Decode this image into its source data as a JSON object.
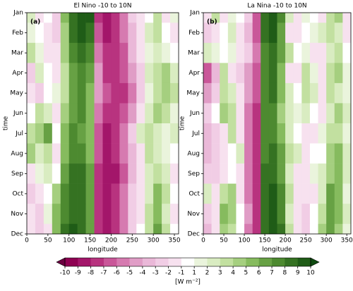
{
  "chart_data": [
    {
      "type": "heatmap",
      "title": "El Nino -10 to 10N",
      "panel_label": "(a)",
      "xlabel": "longitude",
      "ylabel": "time",
      "categories": [
        "Jan",
        "Feb",
        "Mar",
        "Apr",
        "May",
        "Jun",
        "Jul",
        "Aug",
        "Sep",
        "Oct",
        "Nov",
        "Dec"
      ],
      "x_bins": [
        0,
        20,
        40,
        60,
        80,
        100,
        120,
        140,
        160,
        180,
        200,
        220,
        240,
        260,
        280,
        300,
        320,
        340,
        360
      ],
      "xlim": [
        0,
        360
      ],
      "xticks": [
        0,
        50,
        100,
        150,
        200,
        250,
        300,
        350
      ],
      "values": [
        [
          2,
          -2,
          -1,
          -3,
          5,
          8,
          9,
          9,
          -8,
          -9,
          -8,
          -6,
          -3,
          -2,
          -1,
          3,
          -2,
          1
        ],
        [
          1,
          -1,
          -2,
          -3,
          4,
          8,
          9,
          8,
          -7,
          -9,
          -8,
          -6,
          -4,
          -2,
          2,
          3,
          -1,
          -2
        ],
        [
          3,
          1,
          -2,
          -2,
          4,
          7,
          8,
          7,
          -6,
          -8,
          -8,
          -7,
          -4,
          -2,
          1,
          2,
          1,
          -1
        ],
        [
          -3,
          2,
          -1,
          -2,
          3,
          6,
          7,
          6,
          -5,
          -8,
          -8,
          -7,
          -5,
          -3,
          2,
          3,
          4,
          2
        ],
        [
          -2,
          -3,
          -1,
          1,
          3,
          6,
          7,
          5,
          -5,
          -7,
          -8,
          -8,
          -6,
          -3,
          1,
          3,
          4,
          3
        ],
        [
          -1,
          3,
          2,
          -2,
          4,
          6,
          7,
          5,
          -6,
          -8,
          -8,
          -7,
          -5,
          -2,
          2,
          4,
          3,
          1
        ],
        [
          3,
          4,
          6,
          -1,
          5,
          7,
          6,
          5,
          -7,
          -9,
          -8,
          -6,
          -3,
          2,
          3,
          2,
          1,
          2
        ],
        [
          4,
          2,
          3,
          -2,
          5,
          7,
          7,
          5,
          -7,
          -9,
          -8,
          -6,
          -4,
          -2,
          3,
          2,
          1,
          -1
        ],
        [
          -2,
          1,
          2,
          -1,
          6,
          8,
          8,
          6,
          -8,
          -9,
          -9,
          -7,
          -4,
          -2,
          2,
          3,
          2,
          -2
        ],
        [
          -3,
          -2,
          -1,
          4,
          7,
          8,
          8,
          6,
          -8,
          -9,
          -8,
          -6,
          -3,
          -2,
          2,
          5,
          3,
          -1
        ],
        [
          -2,
          -3,
          1,
          5,
          7,
          8,
          8,
          6,
          -8,
          -9,
          -8,
          -6,
          -3,
          -2,
          3,
          5,
          2,
          -2
        ],
        [
          -2,
          -3,
          -2,
          5,
          8,
          9,
          8,
          6,
          -8,
          -9,
          -8,
          -6,
          -3,
          -1,
          3,
          6,
          3,
          -1
        ]
      ]
    },
    {
      "type": "heatmap",
      "title": "La Nina -10 to 10N",
      "panel_label": "(b)",
      "xlabel": "longitude",
      "ylabel": "time",
      "categories": [
        "Jan",
        "Feb",
        "Mar",
        "Apr",
        "May",
        "Jun",
        "Jul",
        "Aug",
        "Sep",
        "Oct",
        "Nov",
        "Dec"
      ],
      "x_bins": [
        0,
        20,
        40,
        60,
        80,
        100,
        120,
        140,
        160,
        180,
        200,
        220,
        240,
        260,
        280,
        300,
        320,
        340,
        360
      ],
      "xlim": [
        0,
        360
      ],
      "xticks": [
        0,
        50,
        100,
        150,
        200,
        250,
        300,
        350
      ],
      "values": [
        [
          -2,
          3,
          -2,
          1,
          -1,
          -3,
          -7,
          8,
          9,
          7,
          2,
          -2,
          1,
          -1,
          -2,
          3,
          4,
          -2
        ],
        [
          -3,
          -2,
          -1,
          2,
          -2,
          -4,
          -7,
          8,
          9,
          6,
          -2,
          -2,
          -1,
          1,
          2,
          3,
          2,
          -2
        ],
        [
          2,
          1,
          -1,
          1,
          -2,
          -3,
          -6,
          7,
          8,
          6,
          3,
          -1,
          1,
          -2,
          -2,
          2,
          3,
          -1
        ],
        [
          -7,
          -4,
          3,
          -2,
          -3,
          -5,
          -7,
          7,
          8,
          5,
          -2,
          -2,
          3,
          1,
          -2,
          3,
          4,
          1
        ],
        [
          -5,
          -3,
          3,
          2,
          -2,
          -5,
          -7,
          7,
          8,
          5,
          2,
          -1,
          3,
          2,
          -2,
          3,
          2,
          1
        ],
        [
          -3,
          -1,
          4,
          3,
          -2,
          -6,
          -8,
          7,
          7,
          4,
          2,
          1,
          2,
          -1,
          -2,
          2,
          4,
          2
        ],
        [
          -4,
          -3,
          -2,
          3,
          -2,
          -6,
          -8,
          7,
          7,
          5,
          2,
          -1,
          -2,
          -2,
          1,
          3,
          3,
          1
        ],
        [
          -4,
          -3,
          -2,
          -1,
          2,
          -6,
          -8,
          7,
          8,
          6,
          3,
          2,
          -2,
          -1,
          -1,
          4,
          5,
          2
        ],
        [
          -3,
          -3,
          -2,
          -1,
          -2,
          -6,
          -8,
          8,
          8,
          6,
          2,
          -2,
          -2,
          1,
          2,
          4,
          5,
          2
        ],
        [
          2,
          -2,
          3,
          4,
          -2,
          -6,
          -8,
          8,
          9,
          7,
          3,
          -2,
          -2,
          -2,
          2,
          6,
          5,
          1
        ],
        [
          -3,
          -2,
          5,
          4,
          -1,
          -5,
          -8,
          8,
          9,
          7,
          2,
          -2,
          -3,
          -1,
          3,
          6,
          5,
          2
        ],
        [
          -4,
          -2,
          4,
          3,
          -1,
          -6,
          -8,
          8,
          9,
          8,
          3,
          -2,
          -3,
          -1,
          4,
          6,
          4,
          1
        ]
      ]
    }
  ],
  "colorbar": {
    "label": "[W m⁻²]",
    "ticks": [
      -10,
      -9,
      -8,
      -7,
      -6,
      -5,
      -4,
      -3,
      -2,
      -1,
      1,
      2,
      3,
      4,
      5,
      6,
      7,
      8,
      9,
      10
    ],
    "under_color": "#6b0040",
    "over_color": "#0f4a10",
    "colors": [
      "#8e0152",
      "#a3166a",
      "#b8337f",
      "#c95799",
      "#d67ab0",
      "#e09dc6",
      "#eab8d8",
      "#f1cde5",
      "#f7e1ef",
      "#ffffff",
      "#eaf4dc",
      "#d9ecc1",
      "#c2e0a0",
      "#a5cf7f",
      "#86bb5e",
      "#67a144",
      "#4d8a30",
      "#357222",
      "#1f5c17"
    ]
  }
}
